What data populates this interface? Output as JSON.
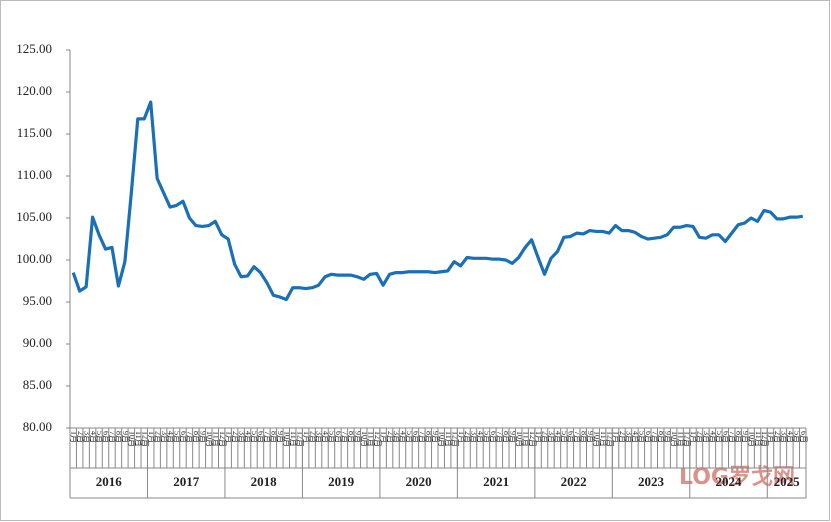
{
  "chart_data": {
    "type": "line",
    "categories": [
      "1月",
      "2月",
      "3月",
      "4月",
      "5月",
      "6月",
      "7月",
      "8月",
      "9月",
      "10月",
      "11月",
      "12月",
      "1月",
      "2月",
      "3月",
      "4月",
      "5月",
      "6月",
      "7月",
      "8月",
      "9月",
      "10月",
      "11月",
      "12月",
      "1月",
      "2月",
      "3月",
      "4月",
      "5月",
      "6月",
      "7月",
      "8月",
      "9月",
      "10月",
      "11月",
      "12月",
      "1月",
      "2月",
      "3月",
      "4月",
      "5月",
      "6月",
      "7月",
      "8月",
      "9月",
      "10月",
      "11月",
      "12月",
      "1月",
      "2月",
      "3月",
      "4月",
      "5月",
      "6月",
      "7月",
      "8月",
      "9月",
      "10月",
      "11月",
      "12月",
      "1月",
      "2月",
      "3月",
      "4月",
      "5月",
      "6月",
      "7月",
      "8月",
      "9月",
      "10月",
      "11月",
      "12月",
      "1月",
      "2月",
      "3月",
      "4月",
      "5月",
      "6月",
      "7月",
      "8月",
      "9月",
      "10月",
      "11月",
      "12月",
      "1月",
      "2月",
      "3月",
      "4月",
      "5月",
      "6月",
      "7月",
      "8月",
      "9月",
      "10月",
      "11月",
      "12月",
      "1月",
      "2月",
      "3月",
      "4月",
      "5月",
      "6月",
      "7月",
      "8月",
      "9月",
      "10月",
      "11月",
      "12月",
      "1月",
      "2月",
      "3月",
      "4月",
      "5月",
      "6月"
    ],
    "year_groups": [
      {
        "label": "2016",
        "count": 12
      },
      {
        "label": "2017",
        "count": 12
      },
      {
        "label": "2018",
        "count": 12
      },
      {
        "label": "2019",
        "count": 12
      },
      {
        "label": "2020",
        "count": 12
      },
      {
        "label": "2021",
        "count": 12
      },
      {
        "label": "2022",
        "count": 12
      },
      {
        "label": "2023",
        "count": 12
      },
      {
        "label": "2024",
        "count": 12
      },
      {
        "label": "2025",
        "count": 6
      }
    ],
    "values": [
      98.5,
      96.3,
      96.8,
      105.1,
      103.0,
      101.3,
      101.5,
      96.9,
      99.8,
      108.0,
      116.8,
      116.8,
      118.8,
      109.7,
      108.0,
      106.3,
      106.5,
      107.0,
      105.0,
      104.1,
      104.0,
      104.1,
      104.6,
      103.0,
      102.5,
      99.5,
      98.0,
      98.1,
      99.2,
      98.5,
      97.3,
      95.8,
      95.6,
      95.3,
      96.7,
      96.7,
      96.6,
      96.7,
      97.0,
      98.0,
      98.3,
      98.2,
      98.2,
      98.2,
      98.0,
      97.7,
      98.3,
      98.4,
      97.0,
      98.3,
      98.5,
      98.5,
      98.6,
      98.6,
      98.6,
      98.6,
      98.5,
      98.6,
      98.7,
      99.8,
      99.3,
      100.3,
      100.2,
      100.2,
      100.2,
      100.1,
      100.1,
      100.0,
      99.6,
      100.3,
      101.5,
      102.4,
      100.3,
      98.3,
      100.2,
      101.0,
      102.7,
      102.8,
      103.2,
      103.1,
      103.5,
      103.4,
      103.4,
      103.2,
      104.1,
      103.5,
      103.5,
      103.3,
      102.8,
      102.5,
      102.6,
      102.7,
      103.0,
      103.9,
      103.9,
      104.1,
      104.0,
      102.7,
      102.6,
      103.0,
      103.0,
      102.2,
      103.2,
      104.2,
      104.4,
      105.0,
      104.6,
      105.9,
      105.7,
      104.9,
      104.9,
      105.1,
      105.1,
      105.2
    ],
    "color": "#1a70b8",
    "ylim": [
      80,
      125
    ],
    "yticks": [
      {
        "value": 80,
        "label": "80.00"
      },
      {
        "value": 85,
        "label": "85.00"
      },
      {
        "value": 90,
        "label": "90.00"
      },
      {
        "value": 95,
        "label": "95.00"
      },
      {
        "value": 100,
        "label": "100.00"
      },
      {
        "value": 105,
        "label": "105.00"
      },
      {
        "value": 110,
        "label": "110.00"
      },
      {
        "value": 115,
        "label": "115.00"
      },
      {
        "value": 120,
        "label": "120.00"
      },
      {
        "value": 125,
        "label": "125.00"
      }
    ],
    "grid": false,
    "watermark": "LOG罗戈网"
  }
}
